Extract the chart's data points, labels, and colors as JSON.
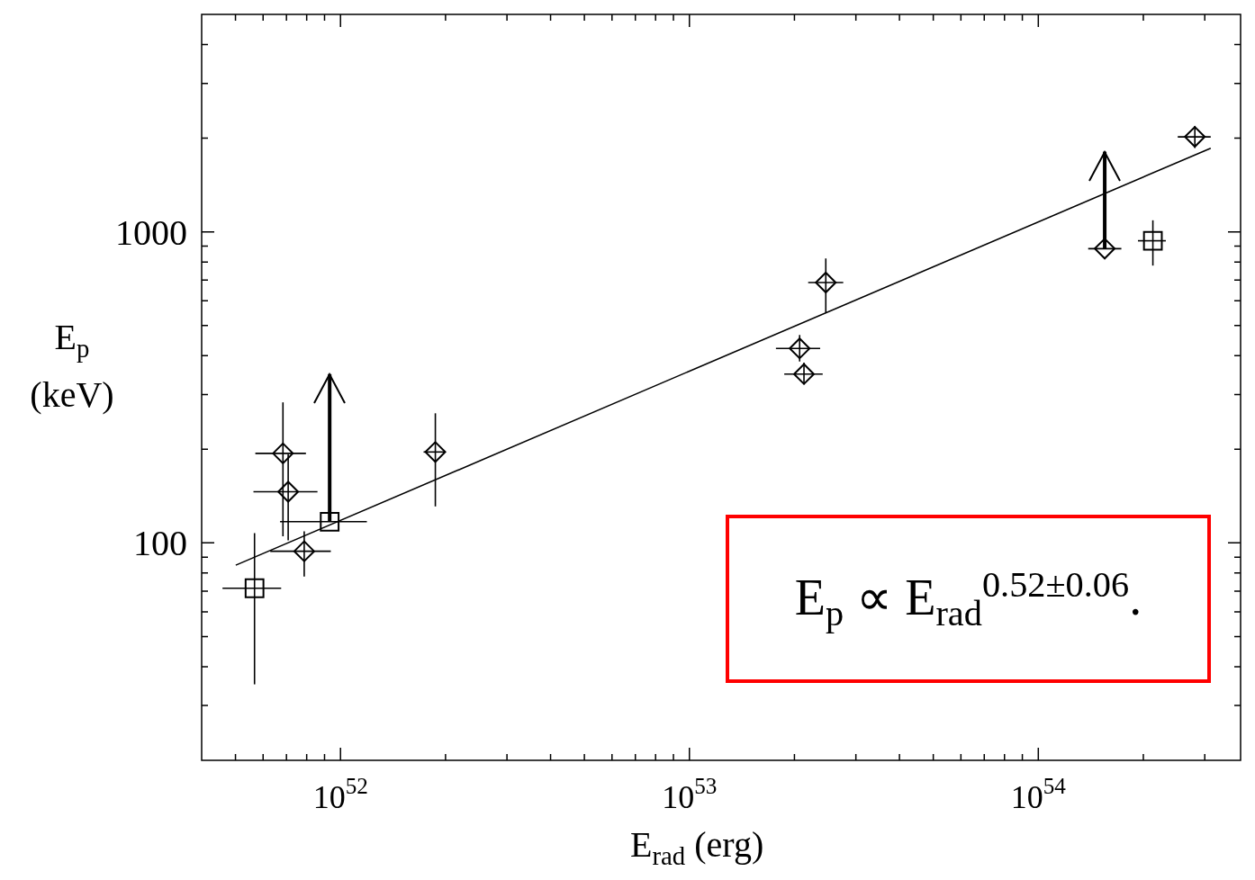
{
  "chart_data": {
    "type": "scatter",
    "xlabel": "E$_{rad}$ (erg)",
    "ylabel": "E$_{p}$ (keV)",
    "log": "xy",
    "grid": false,
    "legend": false,
    "xlim": [
      4e+51,
      3.8e+54
    ],
    "ylim": [
      20,
      5000
    ],
    "xticks": [
      {
        "value": 5e+51,
        "label": null
      },
      {
        "value": 6e+51,
        "label": null
      },
      {
        "value": 7e+51,
        "label": null
      },
      {
        "value": 8e+51,
        "label": null
      },
      {
        "value": 9e+51,
        "label": null
      },
      {
        "value": 1e+52,
        "label": "10$^{52}$"
      },
      {
        "value": 2e+52,
        "label": null
      },
      {
        "value": 3e+52,
        "label": null
      },
      {
        "value": 4e+52,
        "label": null
      },
      {
        "value": 5e+52,
        "label": null
      },
      {
        "value": 6e+52,
        "label": null
      },
      {
        "value": 7e+52,
        "label": null
      },
      {
        "value": 8e+52,
        "label": null
      },
      {
        "value": 9e+52,
        "label": null
      },
      {
        "value": 1e+53,
        "label": "10$^{53}$"
      },
      {
        "value": 2e+53,
        "label": null
      },
      {
        "value": 3e+53,
        "label": null
      },
      {
        "value": 4e+53,
        "label": null
      },
      {
        "value": 5e+53,
        "label": null
      },
      {
        "value": 6e+53,
        "label": null
      },
      {
        "value": 7e+53,
        "label": null
      },
      {
        "value": 8e+53,
        "label": null
      },
      {
        "value": 9e+53,
        "label": null
      },
      {
        "value": 1e+54,
        "label": "10$^{54}$"
      },
      {
        "value": 2e+54,
        "label": null
      },
      {
        "value": 3e+54,
        "label": null
      }
    ],
    "yticks": [
      {
        "value": 30,
        "label": null
      },
      {
        "value": 40,
        "label": null
      },
      {
        "value": 50,
        "label": null
      },
      {
        "value": 60,
        "label": null
      },
      {
        "value": 70,
        "label": null
      },
      {
        "value": 80,
        "label": null
      },
      {
        "value": 90,
        "label": null
      },
      100,
      {
        "value": 200,
        "label": null
      },
      {
        "value": 300,
        "label": null
      },
      {
        "value": 400,
        "label": null
      },
      {
        "value": 500,
        "label": null
      },
      {
        "value": 600,
        "label": null
      },
      {
        "value": 700,
        "label": null
      },
      {
        "value": 800,
        "label": null
      },
      {
        "value": 900,
        "label": null
      },
      1000,
      {
        "value": 2000,
        "label": null
      },
      {
        "value": 3000,
        "label": null
      },
      {
        "value": 4000,
        "label": null
      }
    ],
    "series": [
      {
        "type": "scatter",
        "marker": "diamond",
        "color": "#000000",
        "x": [
          6.84e+51,
          7.08e+51,
          7.87e+51,
          1.87e+52,
          2.46e+53,
          2.07e+53,
          2.13e+53,
          1.55e+54,
          2.81e+54
        ],
        "values": [
          194,
          146,
          94,
          196,
          687,
          422,
          349,
          883,
          2020
        ],
        "errors": [
          [
            105,
            283
          ],
          [
            102,
            193
          ],
          [
            78,
            109
          ],
          [
            131,
            261
          ],
          [
            550,
            821
          ],
          [
            383,
            466
          ],
          [
            323,
            380
          ],
          [
            883,
            1810
          ],
          [
            1860,
            2190
          ]
        ],
        "xerrors": [
          [
            5.7e+51,
            7.96e+51
          ],
          [
            5.63e+51,
            8.59e+51
          ],
          [
            6.29e+51,
            9.38e+51
          ],
          [
            1.73e+52,
            1.99e+52
          ],
          [
            2.19e+53,
            2.76e+53
          ],
          [
            1.77e+53,
            2.37e+53
          ],
          [
            1.87e+53,
            2.41e+53
          ],
          [
            1.39e+54,
            1.73e+54
          ],
          [
            2.51e+54,
            3.12e+54
          ]
        ]
      },
      {
        "type": "scatter",
        "marker": "square",
        "color": "#000000",
        "x": [
          5.67e+51,
          9.31e+51,
          2.13e+54
        ],
        "values": [
          71.5,
          117,
          936
        ],
        "errors": [
          [
            35.1,
            107.5
          ],
          [
            117,
            349
          ],
          [
            779,
            1089
          ]
        ],
        "xerrors": [
          [
            4.59e+51,
            6.76e+51
          ],
          [
            6.71e+51,
            1.19e+52
          ],
          [
            1.93e+54,
            2.32e+54
          ]
        ]
      },
      {
        "type": "line",
        "marker": "none",
        "line_style": "solid",
        "color": "#000000",
        "x": [
          5.01e+51,
          3.12e+54
        ],
        "values": [
          84.8,
          1857
        ]
      }
    ],
    "annotations": [
      "E$_{p}$ ∝ E$_{rad}$$^{0.52±0.06}$."
    ]
  }
}
